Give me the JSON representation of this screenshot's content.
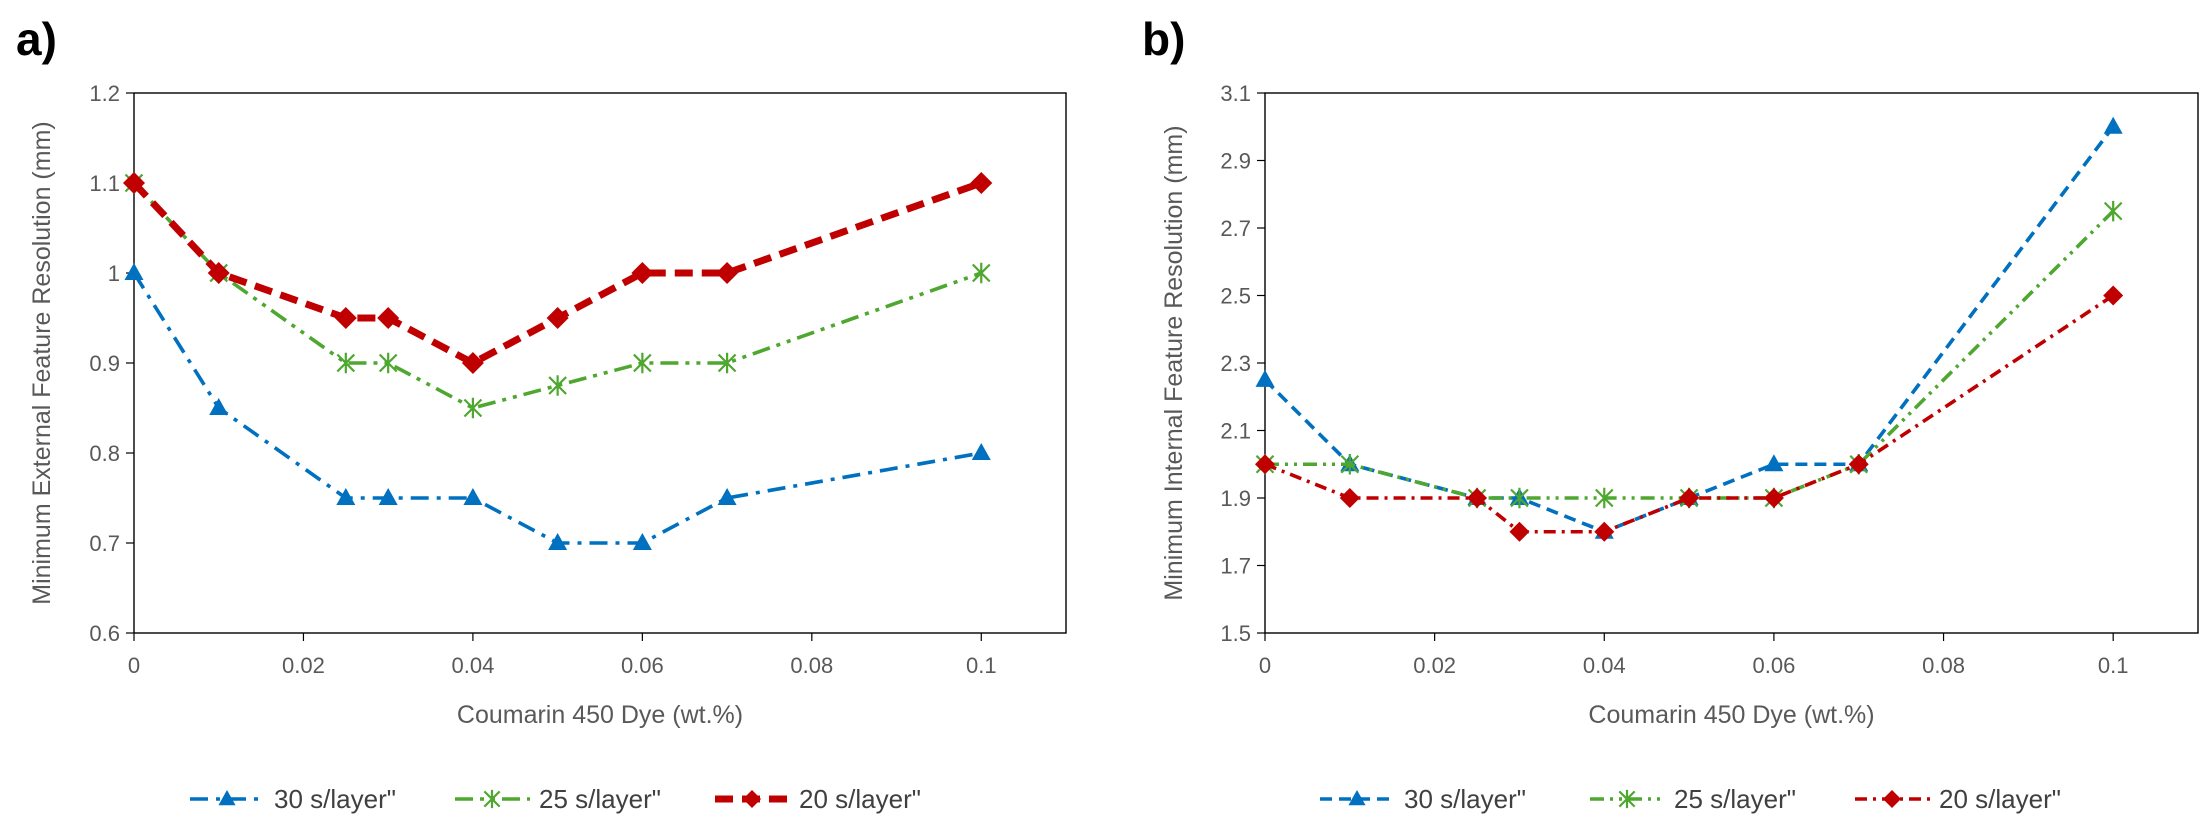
{
  "chart_data": [
    {
      "type": "line",
      "panel_label": "a)",
      "title": "",
      "xlabel": "Coumarin 450 Dye  (wt.%)",
      "ylabel": "Minimum External Feature Resolution (mm)",
      "xlim": [
        0,
        0.11
      ],
      "ylim": [
        0.6,
        1.2
      ],
      "x_ticks": [
        0,
        0.02,
        0.04,
        0.06,
        0.08,
        0.1
      ],
      "x_tick_labels": [
        "0",
        "0.02",
        "0.04",
        "0.06",
        "0.08",
        "0.1"
      ],
      "y_ticks": [
        0.6,
        0.7,
        0.8,
        0.9,
        1.0,
        1.1,
        1.2
      ],
      "y_tick_labels": [
        "0.6",
        "0.7",
        "0.8",
        "0.9",
        "1",
        "1.1",
        "1.2"
      ],
      "grid": false,
      "legend_position": "bottom",
      "series": [
        {
          "name": "30 s/layer\"",
          "color": "#0070C0",
          "marker": "triangle",
          "dash": "dash-dot",
          "x": [
            0,
            0.01,
            0.025,
            0.03,
            0.04,
            0.05,
            0.06,
            0.07,
            0.1
          ],
          "values": [
            1.0,
            0.85,
            0.75,
            0.75,
            0.75,
            0.7,
            0.7,
            0.75,
            0.8
          ]
        },
        {
          "name": "25 s/layer\"",
          "color": "#4EA72E",
          "marker": "star",
          "dash": "dash-dot-dot",
          "x": [
            0,
            0.01,
            0.025,
            0.03,
            0.04,
            0.05,
            0.06,
            0.07,
            0.1
          ],
          "values": [
            1.1,
            1.0,
            0.9,
            0.9,
            0.85,
            0.875,
            0.9,
            0.9,
            1.0
          ]
        },
        {
          "name": "20 s/layer\"",
          "color": "#C00000",
          "marker": "diamond",
          "dash": "dash",
          "x": [
            0,
            0.01,
            0.025,
            0.03,
            0.04,
            0.05,
            0.06,
            0.07,
            0.1
          ],
          "values": [
            1.1,
            1.0,
            0.95,
            0.95,
            0.9,
            0.95,
            1.0,
            1.0,
            1.1
          ]
        }
      ]
    },
    {
      "type": "line",
      "panel_label": "b)",
      "title": "",
      "xlabel": "Coumarin 450 Dye  (wt.%)",
      "ylabel": "Minimum Internal Feature Resolution (mm)",
      "xlim": [
        0,
        0.11
      ],
      "ylim": [
        1.5,
        3.1
      ],
      "x_ticks": [
        0,
        0.02,
        0.04,
        0.06,
        0.08,
        0.1
      ],
      "x_tick_labels": [
        "0",
        "0.02",
        "0.04",
        "0.06",
        "0.08",
        "0.1"
      ],
      "y_ticks": [
        1.5,
        1.7,
        1.9,
        2.1,
        2.3,
        2.5,
        2.7,
        2.9,
        3.1
      ],
      "y_tick_labels": [
        "1.5",
        "1.7",
        "1.9",
        "2.1",
        "2.3",
        "2.5",
        "2.7",
        "2.9",
        "3.1"
      ],
      "grid": false,
      "legend_position": "bottom",
      "series": [
        {
          "name": "30 s/layer\"",
          "color": "#0070C0",
          "marker": "triangle",
          "dash": "dash",
          "x": [
            0,
            0.01,
            0.025,
            0.03,
            0.04,
            0.05,
            0.06,
            0.07,
            0.1
          ],
          "values": [
            2.25,
            2.0,
            1.9,
            1.9,
            1.8,
            1.9,
            2.0,
            2.0,
            3.0
          ]
        },
        {
          "name": "25 s/layer\"",
          "color": "#4EA72E",
          "marker": "star",
          "dash": "dash-dot-dot",
          "x": [
            0,
            0.01,
            0.025,
            0.03,
            0.04,
            0.05,
            0.06,
            0.07,
            0.1
          ],
          "values": [
            2.0,
            2.0,
            1.9,
            1.9,
            1.9,
            1.9,
            1.9,
            2.0,
            2.75
          ]
        },
        {
          "name": "20 s/layer\"",
          "color": "#C00000",
          "marker": "diamond",
          "dash": "dash-dot",
          "x": [
            0,
            0.01,
            0.025,
            0.03,
            0.04,
            0.05,
            0.06,
            0.07,
            0.1
          ],
          "values": [
            2.0,
            1.9,
            1.9,
            1.8,
            1.8,
            1.9,
            1.9,
            2.0,
            2.5
          ]
        }
      ]
    }
  ]
}
